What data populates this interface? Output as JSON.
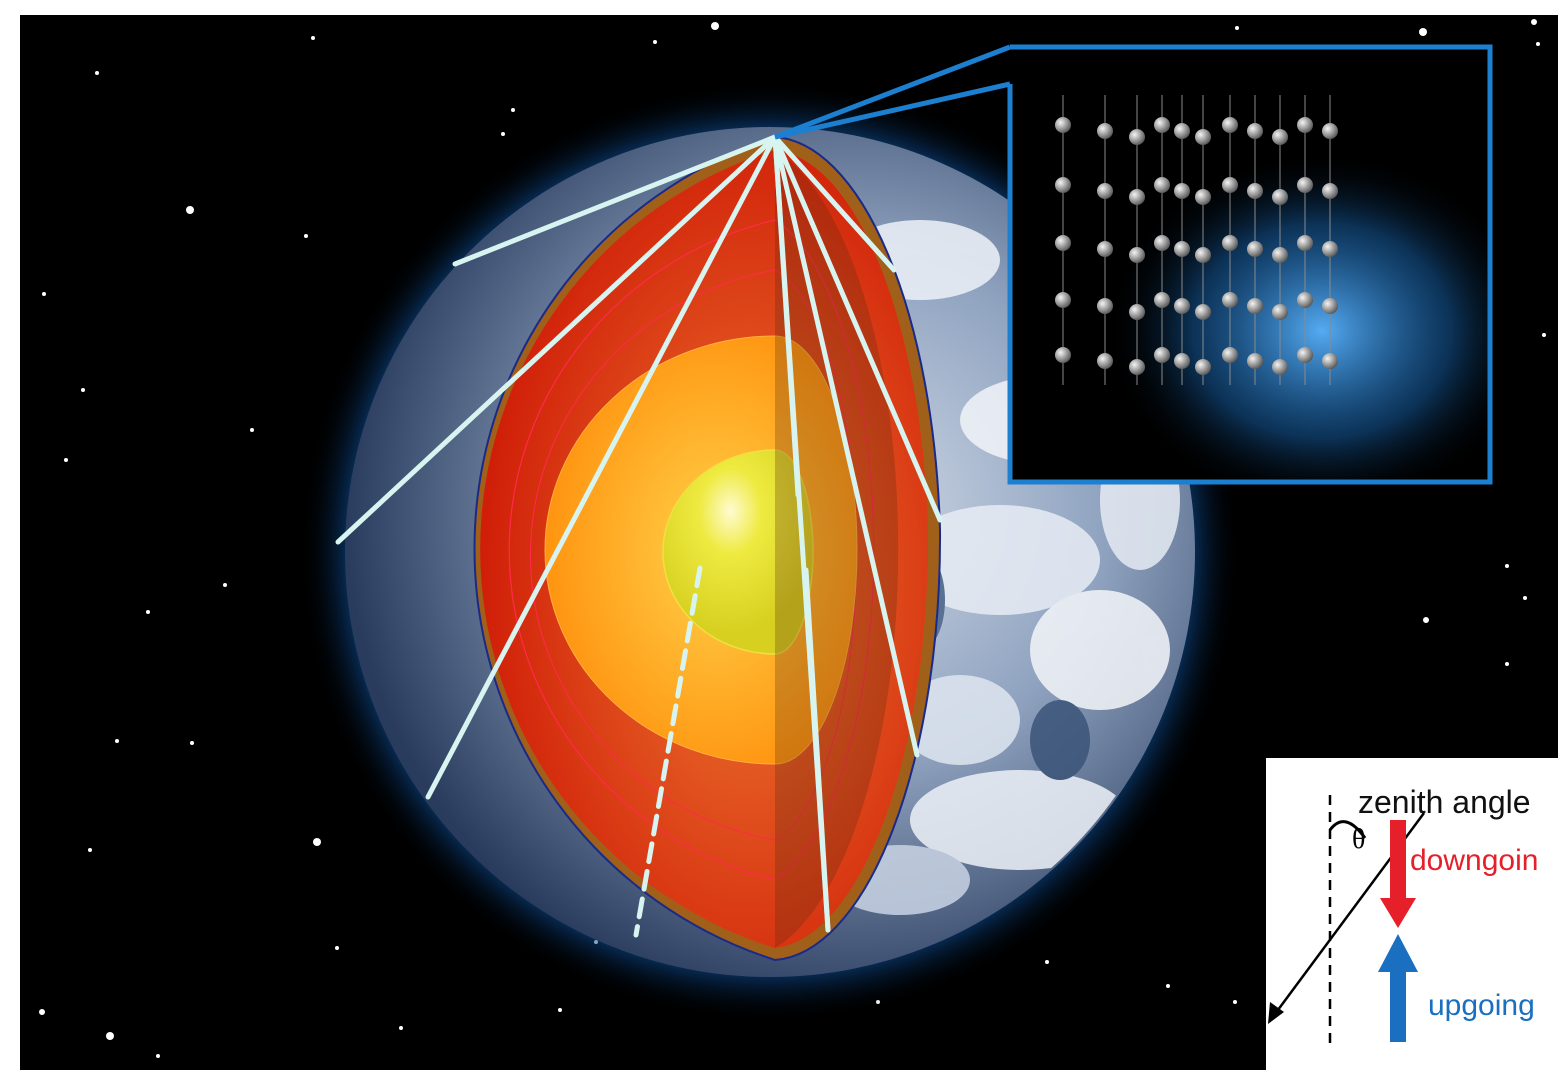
{
  "legend": {
    "zenith_label": "zenith angle",
    "theta_symbol": "θ",
    "downgoing_label": "downgoin",
    "upgoing_label": "upgoing"
  },
  "colors": {
    "space": "#000000",
    "glow": "#1e8fe0",
    "crust": "#a0601a",
    "mantle": "#d62a0c",
    "outer_core": "#ff9a10",
    "inner_core": "#e6e030",
    "neutrino_path": "#d8f4f0",
    "inset_frame": "#1c7fd0",
    "downgoing": "#e6202a",
    "upgoing": "#1a6fc0"
  },
  "icons": [
    "earth-cutaway-icon",
    "detector-array-icon",
    "downgoing-arrow-icon",
    "upgoing-arrow-icon"
  ]
}
